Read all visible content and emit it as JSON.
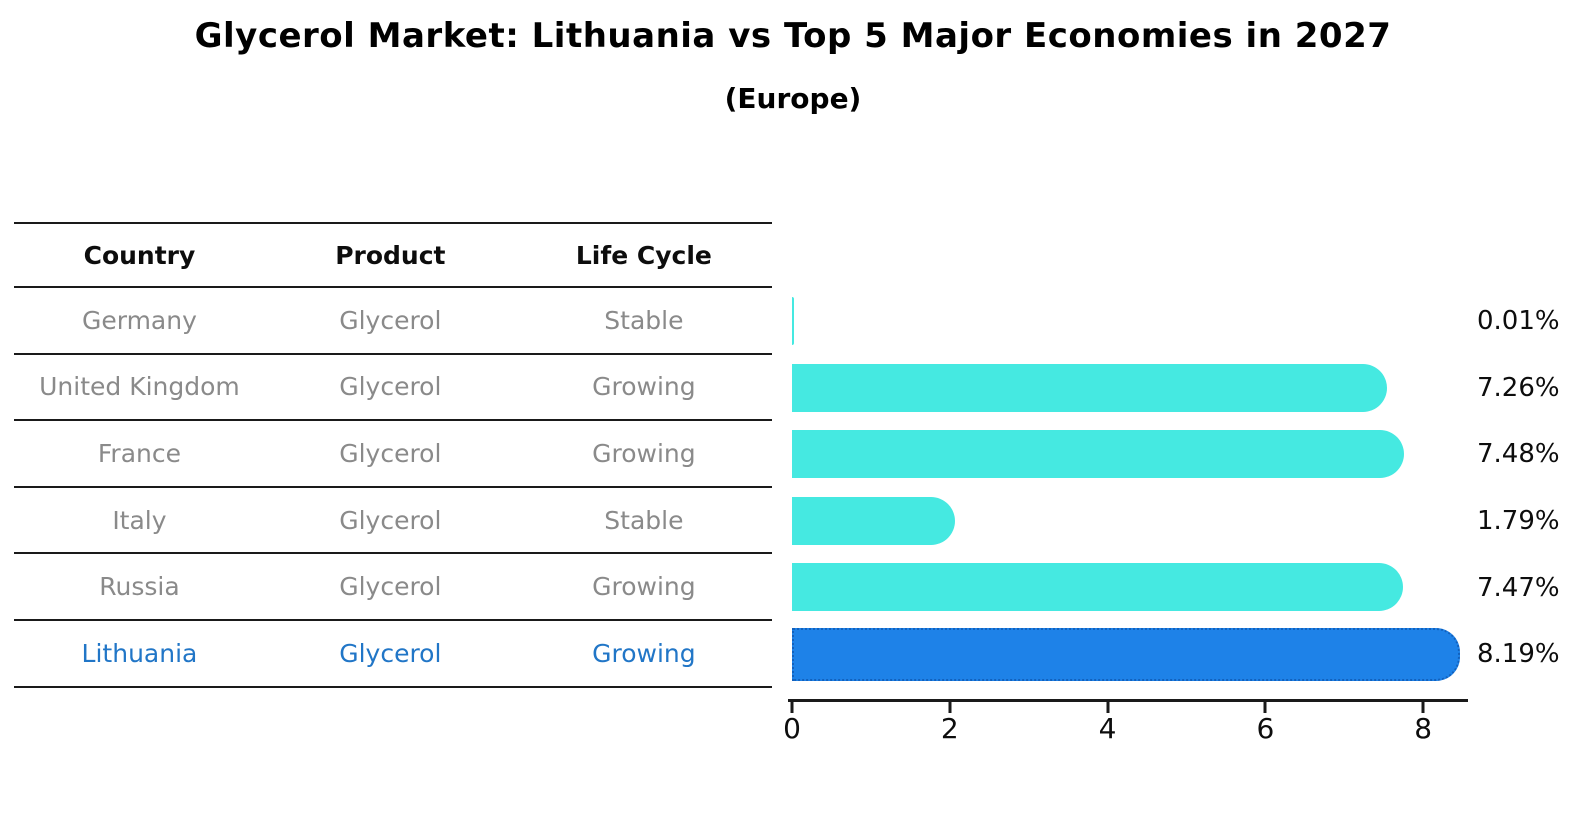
{
  "header": {
    "title": "Glycerol Market: Lithuania vs Top 5 Major Economies in 2027",
    "subtitle": "(Europe)"
  },
  "table": {
    "columns": [
      "Country",
      "Product",
      "Life Cycle"
    ],
    "rows": [
      {
        "country": "Germany",
        "product": "Glycerol",
        "life_cycle": "Stable",
        "highlight": false
      },
      {
        "country": "United Kingdom",
        "product": "Glycerol",
        "life_cycle": "Growing",
        "highlight": false
      },
      {
        "country": "France",
        "product": "Glycerol",
        "life_cycle": "Growing",
        "highlight": false
      },
      {
        "country": "Italy",
        "product": "Glycerol",
        "life_cycle": "Stable",
        "highlight": false
      },
      {
        "country": "Russia",
        "product": "Glycerol",
        "life_cycle": "Growing",
        "highlight": false
      },
      {
        "country": "Lithuania",
        "product": "Glycerol",
        "life_cycle": "Growing",
        "highlight": true
      }
    ]
  },
  "chart_data": {
    "type": "bar",
    "orientation": "horizontal",
    "title": "Glycerol Market: Lithuania vs Top 5 Major Economies in 2027",
    "subtitle": "(Europe)",
    "categories": [
      "Germany",
      "United Kingdom",
      "France",
      "Italy",
      "Russia",
      "Lithuania"
    ],
    "values": [
      0.01,
      7.26,
      7.48,
      1.79,
      7.47,
      8.19
    ],
    "value_labels": [
      "0.01%",
      "7.26%",
      "7.48%",
      "1.79%",
      "7.47%",
      "8.19%"
    ],
    "x_ticks": [
      0,
      2,
      4,
      6,
      8
    ],
    "xlim": [
      0,
      8.6
    ],
    "grid": false,
    "legend": false,
    "highlight_index": 5,
    "bar_color": "#45e9e1",
    "highlight_bar_color": "#1e82e8",
    "highlight_border_color": "#1261bd",
    "highlight_text_color": "#2176c7",
    "text_color": "#8a8a8a"
  }
}
